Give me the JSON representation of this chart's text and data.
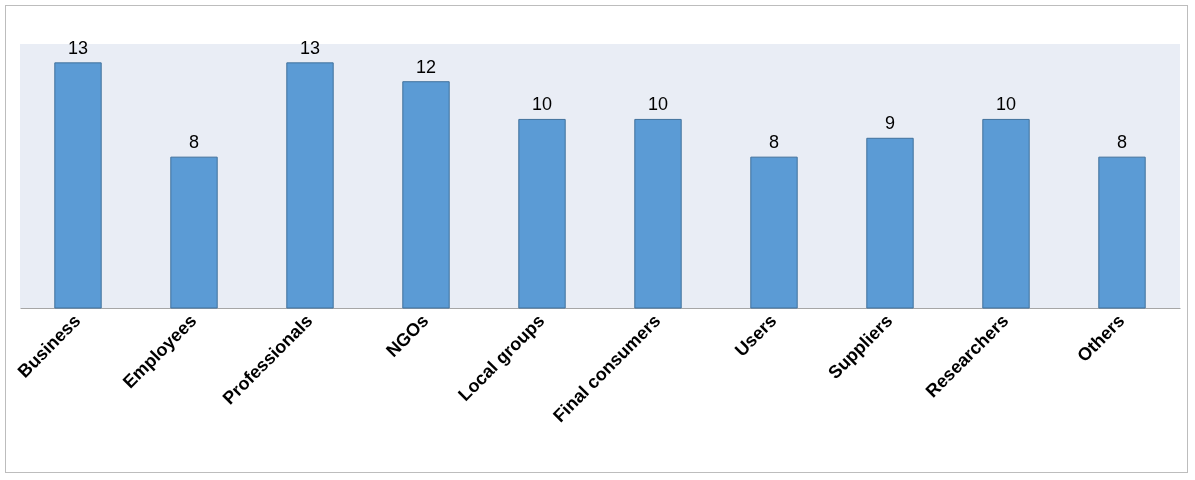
{
  "chart_data": {
    "type": "bar",
    "categories": [
      "Business",
      "Employees",
      "Professionals",
      "NGOs",
      "Local groups",
      "Final consumers",
      "Users",
      "Suppliers",
      "Researchers",
      "Others"
    ],
    "values": [
      13,
      8,
      13,
      12,
      10,
      10,
      8,
      9,
      10,
      8
    ],
    "color": "#5b9bd5",
    "ylim": [
      0,
      14
    ],
    "data_labels": true,
    "grid": false
  }
}
